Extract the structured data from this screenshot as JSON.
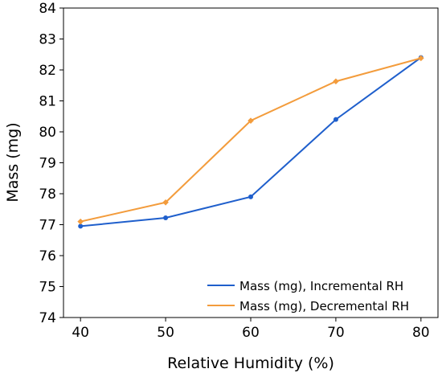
{
  "chart_data": {
    "type": "line",
    "xlabel": "Relative Humidity (%)",
    "ylabel": "Mass (mg)",
    "x": [
      40,
      50,
      60,
      70,
      80
    ],
    "xlim": [
      38,
      82
    ],
    "ylim": [
      74,
      84
    ],
    "xticks": [
      "40",
      "50",
      "60",
      "70",
      "80"
    ],
    "yticks": [
      "74",
      "75",
      "76",
      "77",
      "78",
      "79",
      "80",
      "81",
      "82",
      "83",
      "84"
    ],
    "grid": false,
    "legend_position": "bottom-right",
    "series": [
      {
        "name": "Mass (mg), Incremental RH",
        "values": [
          76.95,
          77.22,
          77.9,
          80.4,
          82.4
        ],
        "color": "#1f5fcc",
        "marker": "circle"
      },
      {
        "name": "Mass (mg), Decremental RH",
        "values": [
          77.1,
          77.72,
          80.36,
          81.63,
          82.38
        ],
        "color": "#f39c3c",
        "marker": "diamond"
      }
    ]
  }
}
